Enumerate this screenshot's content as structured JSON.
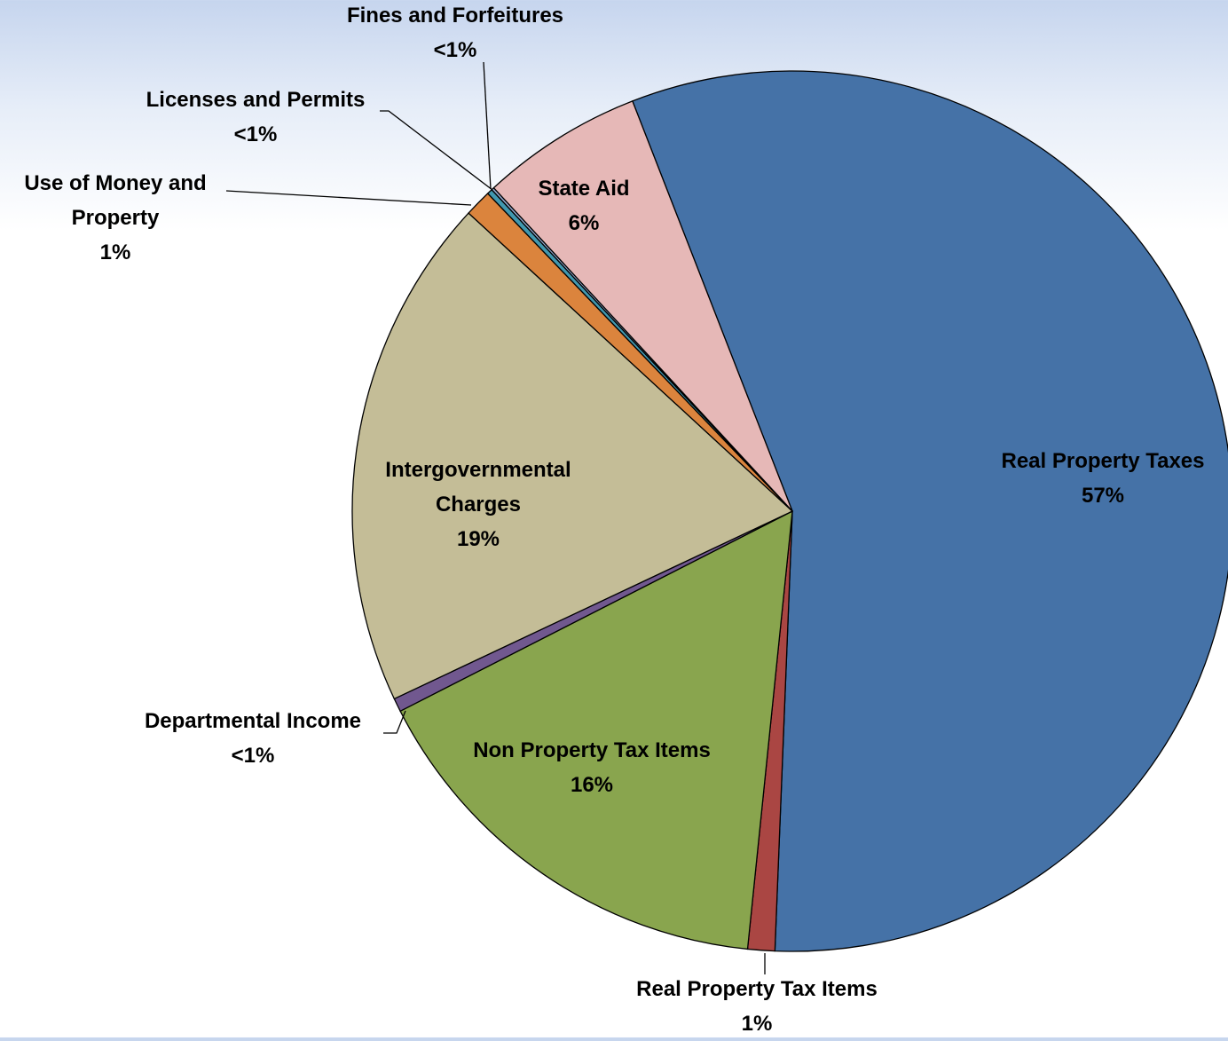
{
  "chart_data": {
    "type": "pie",
    "categories": [
      "Real Property Taxes",
      "Real Property Tax Items",
      "Non Property Tax Items",
      "Departmental Income",
      "Intergovernmental Charges",
      "Use of Money and Property",
      "Licenses and Permits",
      "Fines and Forfeitures",
      "State Aid"
    ],
    "values": [
      57,
      1,
      16,
      0.5,
      19,
      1,
      0.2,
      0.1,
      6
    ],
    "value_labels": [
      "57%",
      "1%",
      "16%",
      "<1%",
      "19%",
      "1%",
      "<1%",
      "<1%",
      "6%"
    ],
    "colors": [
      "#4572a7",
      "#aa4643",
      "#89a54e",
      "#71588f",
      "#c4bd97",
      "#db843d",
      "#4198af",
      "#93a9cf",
      "#e6b8b7"
    ]
  }
}
